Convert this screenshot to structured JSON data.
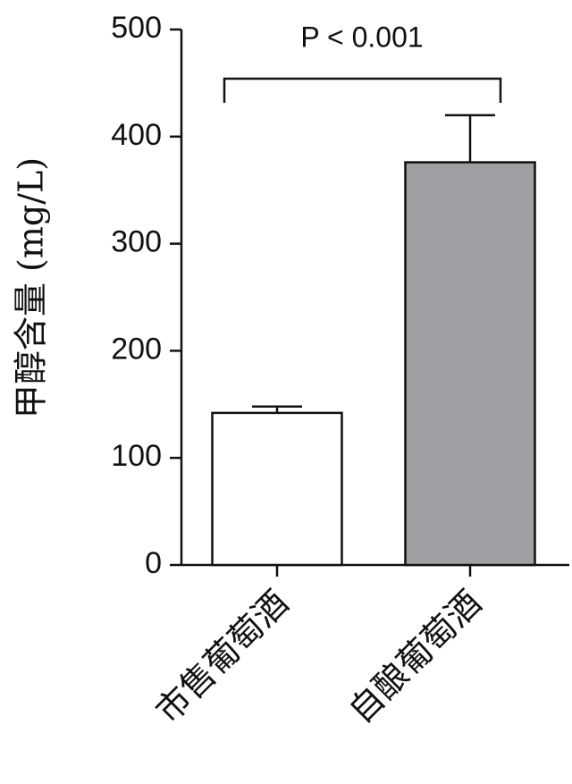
{
  "chart_data": {
    "type": "bar",
    "y_label": "甲醇含量 (mg/L)",
    "annotation": "P < 0.001",
    "categories": [
      "市售葡萄酒",
      "自酿葡萄酒"
    ],
    "values": [
      142,
      376
    ],
    "errors": [
      6,
      44
    ],
    "colors": [
      "#ffffff",
      "#a0a0a4"
    ],
    "ylim": [
      0,
      500
    ],
    "yticks": [
      0,
      100,
      200,
      300,
      400,
      500
    ]
  }
}
